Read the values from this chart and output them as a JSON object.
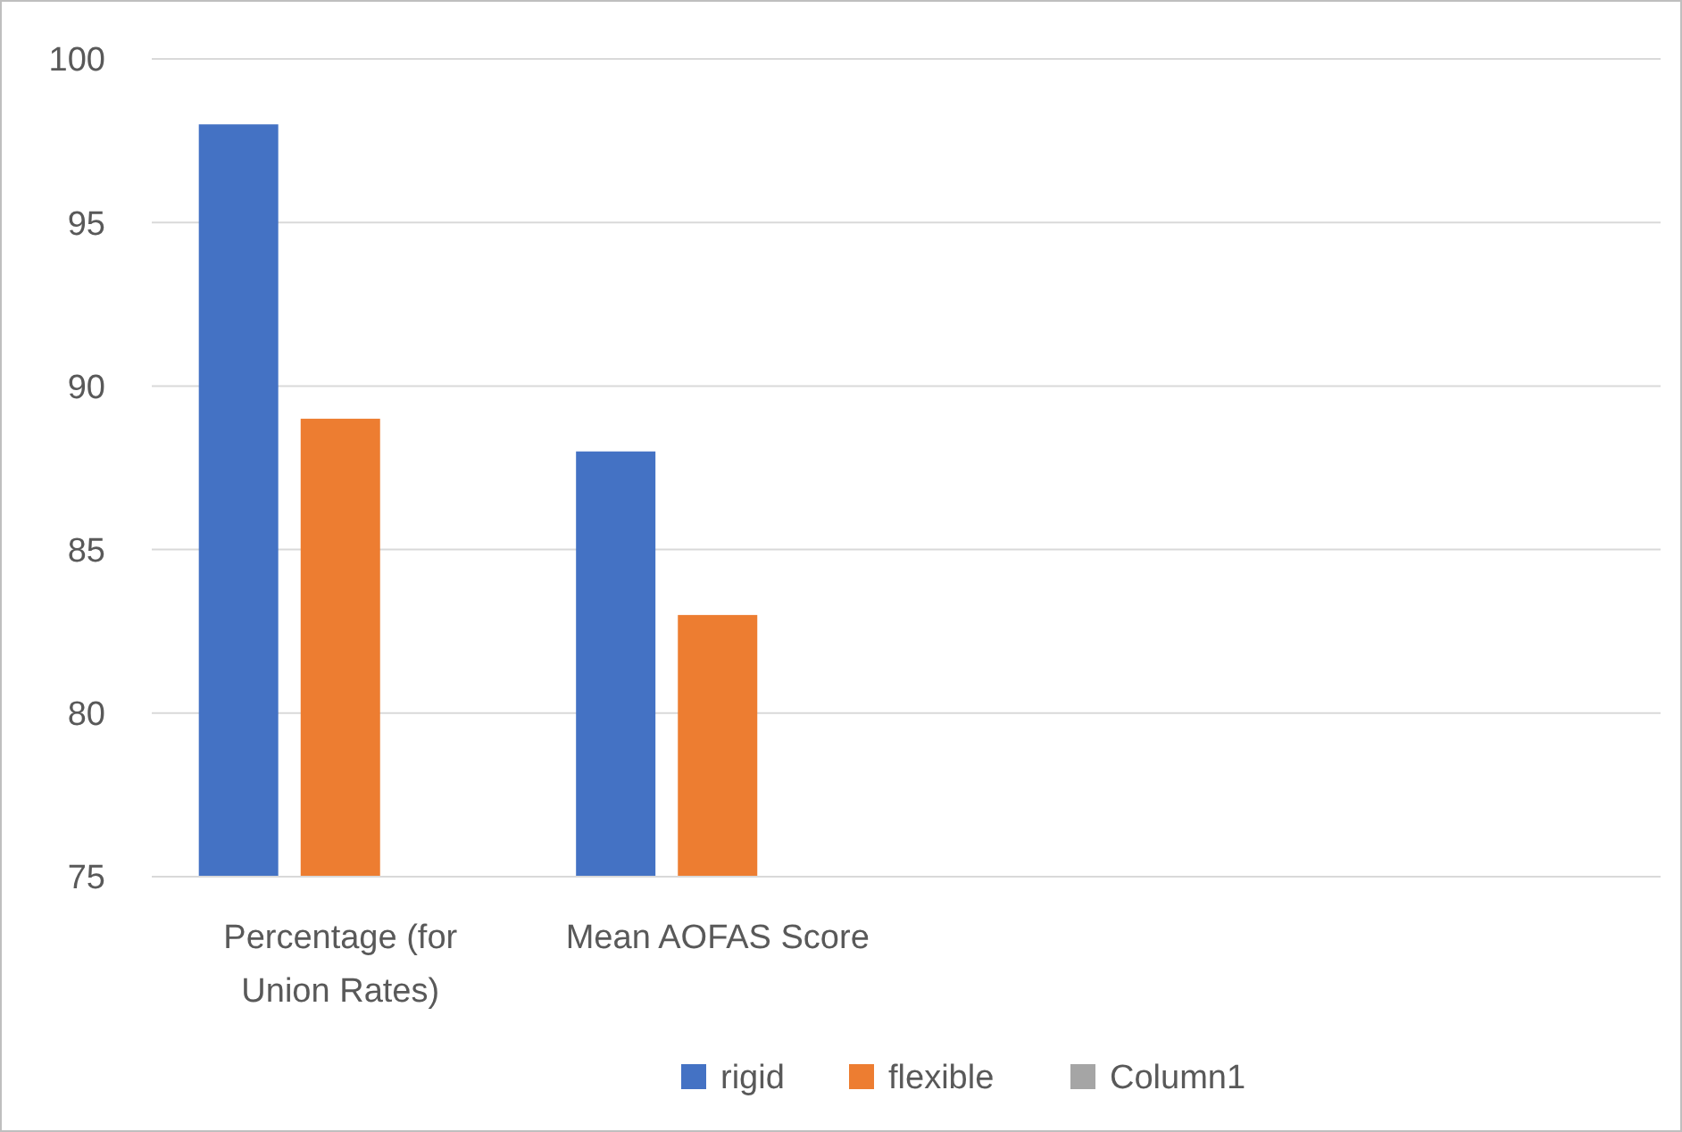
{
  "chart_data": {
    "type": "bar",
    "categories": [
      "Percentage (for Union Rates)",
      "Mean AOFAS Score",
      null,
      null
    ],
    "series": [
      {
        "name": "rigid",
        "color": "#4472c4",
        "values": [
          98,
          88,
          null,
          null
        ]
      },
      {
        "name": "flexible",
        "color": "#ed7d31",
        "values": [
          89,
          83,
          null,
          null
        ]
      },
      {
        "name": "Column1",
        "color": "#a5a5a5",
        "values": [
          null,
          null,
          null,
          null
        ]
      }
    ],
    "ylim": [
      75,
      100
    ],
    "yticks": [
      75,
      80,
      85,
      90,
      95,
      100
    ],
    "grid": "y",
    "legend": "bottom"
  }
}
